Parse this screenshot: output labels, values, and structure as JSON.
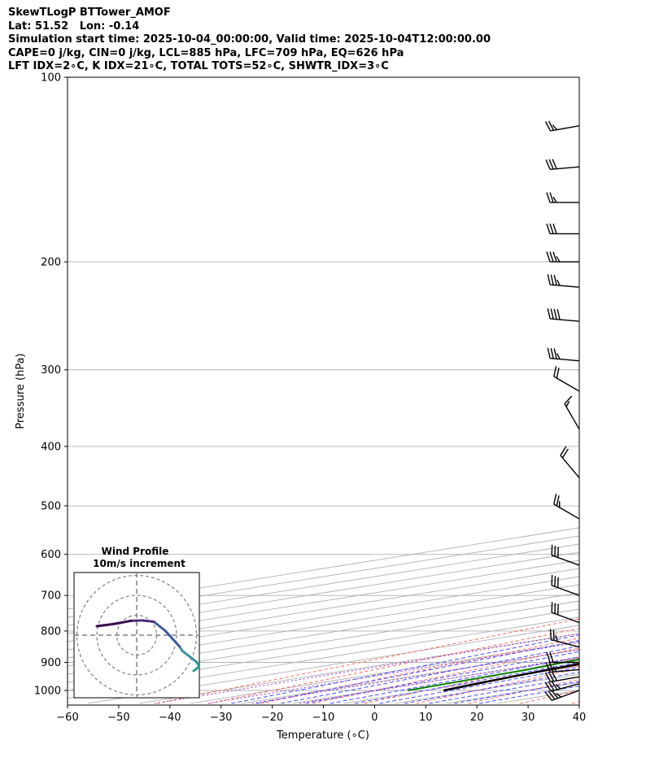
{
  "header": {
    "line1": "SkewTLogP BTTower_AMOF",
    "line2": "Lat: 51.52   Lon: -0.14",
    "line3": "Simulation start time: 2025-10-04_00:00:00, Valid time: 2025-10-04T12:00:00.00",
    "line4": "CAPE=0 j/kg, CIN=0 j/kg, LCL=885 hPa, LFC=709 hPa, EQ=626 hPa",
    "line5": "LFT IDX=2∘C, K IDX=21∘C, TOTAL TOTS=52∘C, SHWTR_IDX=3∘C"
  },
  "chart_data": [
    {
      "type": "line",
      "subtype": "skew-t log-p",
      "xlabel": "Temperature (∘C)",
      "ylabel": "Pressure (hPa)",
      "xlim": [
        -60,
        40
      ],
      "ylim": [
        1050,
        100
      ],
      "y_scale": "log",
      "grid": true,
      "x_ticks": [
        "−60",
        "−50",
        "−40",
        "−30",
        "−20",
        "−10",
        "0",
        "10",
        "20",
        "30",
        "40"
      ],
      "y_ticks": [
        "100",
        "200",
        "300",
        "400",
        "500",
        "600",
        "700",
        "800",
        "900",
        "1000"
      ],
      "series": [
        {
          "name": "Temperature",
          "color": "#ff0000",
          "points": [
            [
              1000,
              13.5
            ],
            [
              975,
              11.5
            ],
            [
              950,
              9.8
            ],
            [
              925,
              8.6
            ],
            [
              900,
              8.0
            ],
            [
              875,
              7.6
            ],
            [
              850,
              6.6
            ],
            [
              800,
              4.7
            ],
            [
              750,
              2.6
            ],
            [
              700,
              0.4
            ],
            [
              650,
              -1.8
            ],
            [
              600,
              -4.2
            ],
            [
              550,
              -7.4
            ],
            [
              500,
              -10.7
            ],
            [
              470,
              -12.9
            ],
            [
              450,
              -14.5
            ],
            [
              420,
              -17.4
            ],
            [
              400,
              -19.6
            ],
            [
              380,
              -21.4
            ],
            [
              360,
              -18.7
            ],
            [
              340,
              -16.0
            ],
            [
              320,
              -13.3
            ],
            [
              300,
              -10.3
            ],
            [
              280,
              -7.8
            ],
            [
              260,
              -6.4
            ],
            [
              240,
              -5.7
            ],
            [
              220,
              -5.5
            ],
            [
              200,
              -5.6
            ],
            [
              180,
              -6.7
            ],
            [
              160,
              -6.9
            ],
            [
              150,
              -7.3
            ],
            [
              140,
              -8.8
            ],
            [
              130,
              -12.1
            ],
            [
              120,
              -14.4
            ],
            [
              110,
              -16.5
            ],
            [
              100,
              -19.1
            ]
          ]
        },
        {
          "name": "Dewpoint",
          "color": "#008000",
          "points": [
            [
              1000,
              6.5
            ],
            [
              950,
              5.0
            ],
            [
              925,
              4.2
            ],
            [
              900,
              2.5
            ],
            [
              875,
              0.9
            ],
            [
              850,
              -0.8
            ],
            [
              800,
              -3.6
            ],
            [
              750,
              -6.2
            ],
            [
              700,
              -8.0
            ],
            [
              650,
              -8.4
            ],
            [
              600,
              -9.2
            ],
            [
              550,
              -11.6
            ],
            [
              500,
              -14.4
            ],
            [
              450,
              -18.6
            ],
            [
              420,
              -21.7
            ],
            [
              400,
              -23.5
            ],
            [
              380,
              -24.7
            ],
            [
              360,
              -29.4
            ],
            [
              340,
              -35.1
            ],
            [
              320,
              -40.4
            ],
            [
              300,
              -41.2
            ],
            [
              280,
              -43.0
            ],
            [
              260,
              -46.0
            ],
            [
              240,
              -48.0
            ],
            [
              220,
              -50.5
            ],
            [
              200,
              -53.2
            ],
            [
              180,
              -56.9
            ],
            [
              160,
              -62.0
            ],
            [
              140,
              -65.0
            ],
            [
              120,
              -70.0
            ],
            [
              100,
              -76.0
            ]
          ]
        },
        {
          "name": "Parcel profile",
          "color": "#000000",
          "points": [
            [
              1000,
              13.5
            ],
            [
              950,
              10.0
            ],
            [
              900,
              7.0
            ],
            [
              885,
              6.4
            ],
            [
              850,
              4.5
            ],
            [
              800,
              1.7
            ],
            [
              750,
              -1.1
            ],
            [
              700,
              -4.2
            ],
            [
              650,
              -7.4
            ],
            [
              600,
              -10.8
            ],
            [
              550,
              -14.6
            ],
            [
              500,
              -18.8
            ],
            [
              450,
              -23.6
            ],
            [
              400,
              -29.3
            ],
            [
              350,
              -36.4
            ],
            [
              300,
              -44.7
            ],
            [
              250,
              -54.3
            ],
            [
              200,
              -66.1
            ],
            [
              150,
              -81.5
            ],
            [
              100,
              -104.2
            ]
          ]
        }
      ],
      "wind_barbs": [
        {
          "pressure": 1000,
          "speed_kt": 35,
          "direction_deg": 250
        },
        {
          "pressure": 975,
          "speed_kt": 35,
          "direction_deg": 255
        },
        {
          "pressure": 950,
          "speed_kt": 30,
          "direction_deg": 260
        },
        {
          "pressure": 925,
          "speed_kt": 25,
          "direction_deg": 265
        },
        {
          "pressure": 900,
          "speed_kt": 20,
          "direction_deg": 270
        },
        {
          "pressure": 850,
          "speed_kt": 25,
          "direction_deg": 285
        },
        {
          "pressure": 775,
          "speed_kt": 30,
          "direction_deg": 290
        },
        {
          "pressure": 700,
          "speed_kt": 30,
          "direction_deg": 290
        },
        {
          "pressure": 625,
          "speed_kt": 30,
          "direction_deg": 290
        },
        {
          "pressure": 525,
          "speed_kt": 25,
          "direction_deg": 300
        },
        {
          "pressure": 450,
          "speed_kt": 20,
          "direction_deg": 320
        },
        {
          "pressure": 375,
          "speed_kt": 15,
          "direction_deg": 330
        },
        {
          "pressure": 325,
          "speed_kt": 20,
          "direction_deg": 300
        },
        {
          "pressure": 290,
          "speed_kt": 35,
          "direction_deg": 275
        },
        {
          "pressure": 250,
          "speed_kt": 40,
          "direction_deg": 275
        },
        {
          "pressure": 220,
          "speed_kt": 35,
          "direction_deg": 275
        },
        {
          "pressure": 200,
          "speed_kt": 35,
          "direction_deg": 270
        },
        {
          "pressure": 180,
          "speed_kt": 30,
          "direction_deg": 270
        },
        {
          "pressure": 160,
          "speed_kt": 25,
          "direction_deg": 270
        },
        {
          "pressure": 140,
          "speed_kt": 30,
          "direction_deg": 265
        },
        {
          "pressure": 120,
          "speed_kt": 25,
          "direction_deg": 260
        }
      ]
    },
    {
      "type": "scatter",
      "subtype": "hodograph",
      "title": "Wind Profile",
      "subtitle": "10m/s increment",
      "rings_mps": [
        10,
        20,
        30
      ],
      "points_uv": [
        [
          10.0,
          -8.0
        ],
        [
          11.0,
          -7.0
        ],
        [
          10.5,
          -6.0
        ],
        [
          8.0,
          -3.5
        ],
        [
          7.5,
          -2.5
        ],
        [
          5.0,
          1.0
        ],
        [
          3.0,
          3.0
        ],
        [
          1.0,
          3.3
        ],
        [
          -1.0,
          3.2
        ],
        [
          -4.0,
          2.5
        ],
        [
          -7.0,
          2.0
        ]
      ],
      "colormap": [
        "#2a9d8f",
        "#3a8f9a",
        "#3b5a9b",
        "#4a2a7a",
        "#3b0a4f"
      ]
    }
  ]
}
